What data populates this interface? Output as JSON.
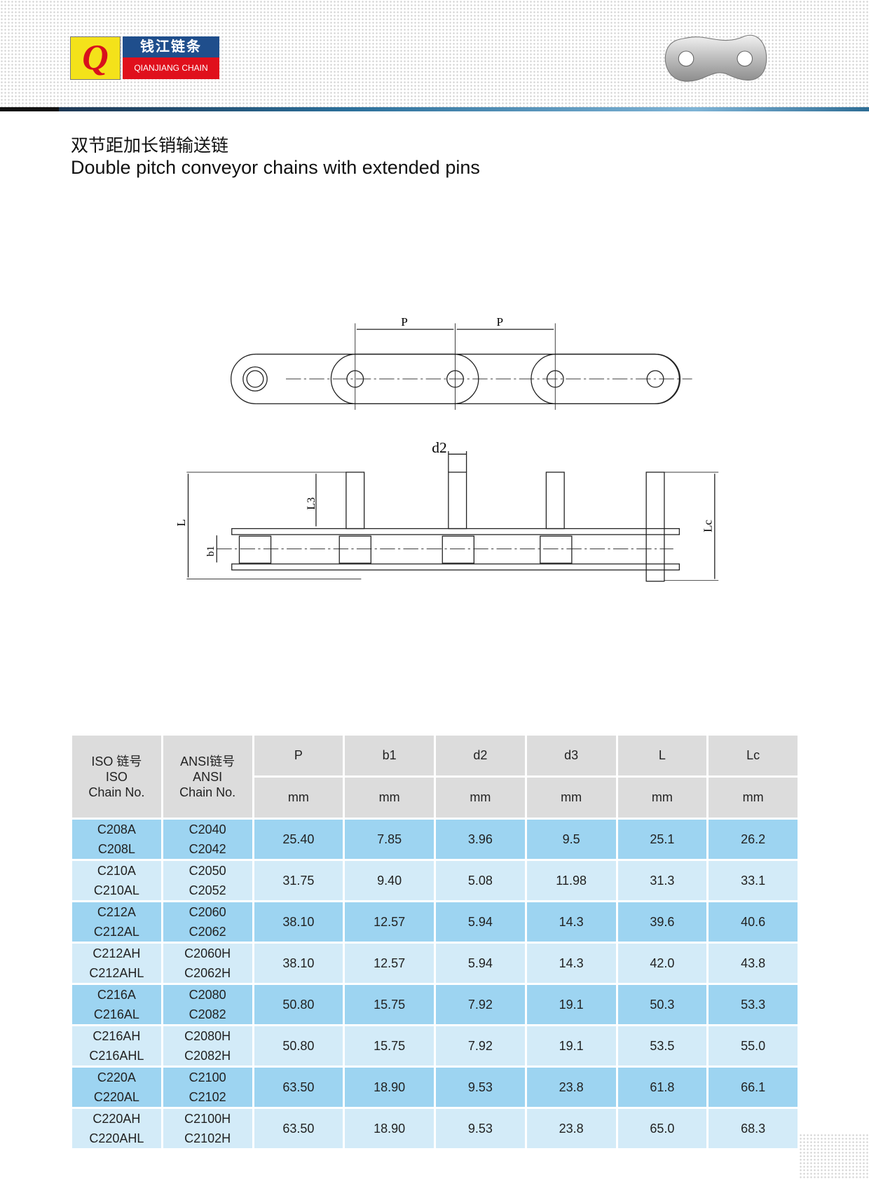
{
  "brand": {
    "logo_mark": "QJ",
    "name_cn": "钱江链条",
    "name_en": "QIANJIANG CHAIN"
  },
  "title": {
    "cn": "双节距加长销输送链",
    "en": "Double pitch conveyor chains with extended pins"
  },
  "diagram": {
    "labels": {
      "p1": "P",
      "p2": "P",
      "d2": "d2",
      "l3": "L3",
      "l": "L",
      "b1": "b1",
      "lc": "Lc"
    }
  },
  "table": {
    "headers": {
      "iso": [
        "ISO 链号",
        "ISO",
        "Chain No."
      ],
      "ansi": [
        "ANSI链号",
        "ANSI",
        "Chain No."
      ],
      "cols": [
        "P",
        "b1",
        "d2",
        "d3",
        "L",
        "Lc"
      ],
      "unit": "mm"
    },
    "rows": [
      {
        "iso": [
          "C208A",
          "C208L"
        ],
        "ansi": [
          "C2040",
          "C2042"
        ],
        "vals": [
          "25.40",
          "7.85",
          "3.96",
          "9.5",
          "25.1",
          "26.2"
        ]
      },
      {
        "iso": [
          "C210A",
          "C210AL"
        ],
        "ansi": [
          "C2050",
          "C2052"
        ],
        "vals": [
          "31.75",
          "9.40",
          "5.08",
          "11.98",
          "31.3",
          "33.1"
        ]
      },
      {
        "iso": [
          "C212A",
          "C212AL"
        ],
        "ansi": [
          "C2060",
          "C2062"
        ],
        "vals": [
          "38.10",
          "12.57",
          "5.94",
          "14.3",
          "39.6",
          "40.6"
        ]
      },
      {
        "iso": [
          "C212AH",
          "C212AHL"
        ],
        "ansi": [
          "C2060H",
          "C2062H"
        ],
        "vals": [
          "38.10",
          "12.57",
          "5.94",
          "14.3",
          "42.0",
          "43.8"
        ]
      },
      {
        "iso": [
          "C216A",
          "C216AL"
        ],
        "ansi": [
          "C2080",
          "C2082"
        ],
        "vals": [
          "50.80",
          "15.75",
          "7.92",
          "19.1",
          "50.3",
          "53.3"
        ]
      },
      {
        "iso": [
          "C216AH",
          "C216AHL"
        ],
        "ansi": [
          "C2080H",
          "C2082H"
        ],
        "vals": [
          "50.80",
          "15.75",
          "7.92",
          "19.1",
          "53.5",
          "55.0"
        ]
      },
      {
        "iso": [
          "C220A",
          "C220AL"
        ],
        "ansi": [
          "C2100",
          "C2102"
        ],
        "vals": [
          "63.50",
          "18.90",
          "9.53",
          "23.8",
          "61.8",
          "66.1"
        ]
      },
      {
        "iso": [
          "C220AH",
          "C220AHL"
        ],
        "ansi": [
          "C2100H",
          "C2102H"
        ],
        "vals": [
          "63.50",
          "18.90",
          "9.53",
          "23.8",
          "65.0",
          "68.3"
        ]
      }
    ]
  }
}
